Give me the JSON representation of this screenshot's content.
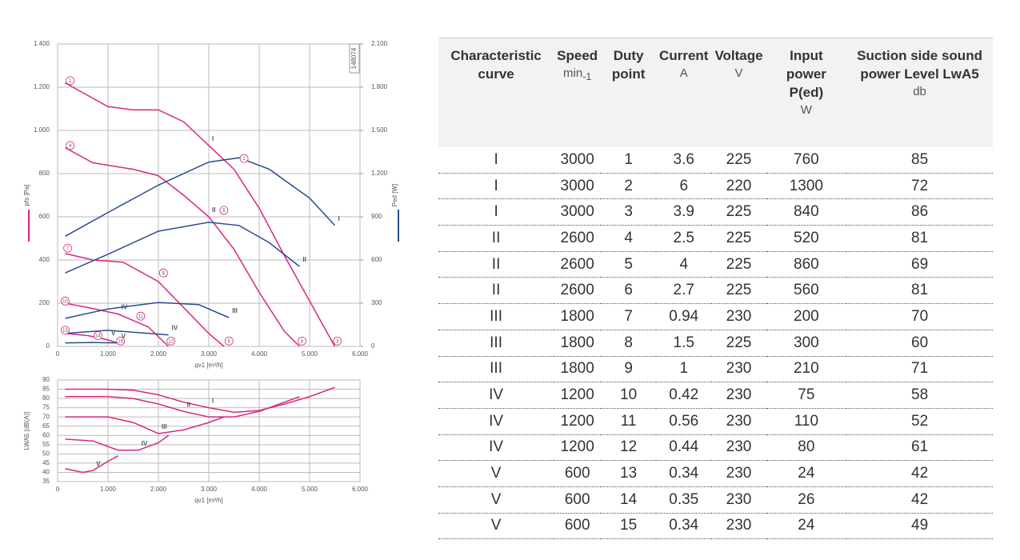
{
  "chart_data": [
    {
      "type": "line",
      "code": "148074",
      "xlabel": "qv1 [m³/h]",
      "ylabel": "pfs [Pa]",
      "y2label": "Ped [W]",
      "xlim": [
        0,
        6000
      ],
      "xticks": [
        0,
        {
          "value": 1000,
          "label": "1.000"
        },
        {
          "value": 2000,
          "label": "2.000"
        },
        {
          "value": 3000,
          "label": "3.000"
        },
        {
          "value": 4000,
          "label": "4.000"
        },
        {
          "value": 5000,
          "label": "5.000"
        },
        {
          "value": 6000,
          "label": "6.000"
        }
      ],
      "ylim": [
        0,
        1400
      ],
      "yticks": [
        0,
        200,
        400,
        600,
        800,
        {
          "value": 1000,
          "label": "1.000"
        },
        {
          "value": 1200,
          "label": "1.200"
        },
        {
          "value": 1400,
          "label": "1.400"
        }
      ],
      "y2lim": [
        0,
        2100
      ],
      "y2ticks": [
        0,
        300,
        600,
        900,
        {
          "value": 1200,
          "label": "1.200"
        },
        {
          "value": 1500,
          "label": "1.500"
        },
        {
          "value": 1800,
          "label": "1.800"
        },
        {
          "value": 2100,
          "label": "2.100"
        }
      ],
      "grid": true,
      "series": [
        {
          "name": "I",
          "color": "#d6287f",
          "x": [
            150,
            1000,
            1500,
            2000,
            2500,
            3000,
            3500,
            4000,
            4500,
            5000,
            5500
          ],
          "values": [
            1220,
            1110,
            1095,
            1095,
            1040,
            930,
            820,
            640,
            420,
            210,
            0
          ]
        },
        {
          "name": "II",
          "color": "#d6287f",
          "x": [
            150,
            700,
            1500,
            2000,
            2500,
            3000,
            3500,
            4000,
            4500,
            4800
          ],
          "values": [
            920,
            850,
            820,
            790,
            700,
            600,
            450,
            250,
            70,
            0
          ]
        },
        {
          "name": "III",
          "color": "#d6287f",
          "x": [
            150,
            700,
            1300,
            2000,
            2500,
            3000,
            3300
          ],
          "values": [
            430,
            400,
            390,
            300,
            180,
            60,
            0
          ]
        },
        {
          "name": "IV",
          "color": "#d6287f",
          "x": [
            150,
            600,
            1200,
            1800,
            2200
          ],
          "values": [
            200,
            180,
            150,
            90,
            0
          ]
        },
        {
          "name": "V",
          "color": "#d6287f",
          "x": [
            150,
            600,
            1000,
            1200
          ],
          "values": [
            60,
            50,
            30,
            15
          ]
        },
        {
          "name": "I",
          "color": "#2a4d8f",
          "axis": "y2",
          "x": [
            150,
            1000,
            2000,
            3000,
            3600,
            4200,
            5000,
            5500
          ],
          "values": [
            765,
            930,
            1120,
            1280,
            1310,
            1230,
            1030,
            840
          ]
        },
        {
          "name": "II",
          "color": "#2a4d8f",
          "axis": "y2",
          "x": [
            150,
            1000,
            2000,
            3000,
            3600,
            4200,
            4800
          ],
          "values": [
            510,
            640,
            800,
            862,
            840,
            720,
            555
          ]
        },
        {
          "name": "III",
          "color": "#2a4d8f",
          "axis": "y2",
          "x": [
            150,
            1000,
            2000,
            2800,
            3400
          ],
          "values": [
            195,
            260,
            305,
            290,
            200
          ]
        },
        {
          "name": "IV",
          "color": "#2a4d8f",
          "axis": "y2",
          "x": [
            150,
            1000,
            2200
          ],
          "values": [
            90,
            112,
            80
          ]
        },
        {
          "name": "V",
          "color": "#2a4d8f",
          "axis": "y2",
          "x": [
            150,
            700,
            1200
          ],
          "values": [
            24,
            27,
            24
          ]
        }
      ],
      "annotations": [
        {
          "label": "1",
          "x": 250,
          "y": 1230
        },
        {
          "label": "2",
          "x": 3700,
          "y": 870
        },
        {
          "label": "3",
          "x": 5550,
          "y": 25
        },
        {
          "label": "4",
          "x": 250,
          "y": 930
        },
        {
          "label": "5",
          "x": 3300,
          "y": 630
        },
        {
          "label": "6",
          "x": 4850,
          "y": 25
        },
        {
          "label": "7",
          "x": 200,
          "y": 455
        },
        {
          "label": "8",
          "x": 2100,
          "y": 340
        },
        {
          "label": "9",
          "x": 3400,
          "y": 25
        },
        {
          "label": "10",
          "x": 150,
          "y": 210
        },
        {
          "label": "11",
          "x": 1650,
          "y": 140
        },
        {
          "label": "12",
          "x": 2250,
          "y": 25
        },
        {
          "label": "13",
          "x": 150,
          "y": 75
        },
        {
          "label": "14",
          "x": 800,
          "y": 50
        },
        {
          "label": "15",
          "x": 1250,
          "y": 25
        }
      ]
    },
    {
      "type": "line",
      "xlabel": "qv1 [m³/h]",
      "ylabel": "LWA5 [dB(A)]",
      "xlim": [
        0,
        6000
      ],
      "xticks": [
        0,
        {
          "value": 1000,
          "label": "1.000"
        },
        {
          "value": 2000,
          "label": "2.000"
        },
        {
          "value": 3000,
          "label": "3.000"
        },
        {
          "value": 4000,
          "label": "4.000"
        },
        {
          "value": 5000,
          "label": "5.000"
        },
        {
          "value": 6000,
          "label": "6.000"
        }
      ],
      "ylim": [
        35,
        90
      ],
      "yticks": [
        35,
        40,
        45,
        50,
        55,
        60,
        65,
        70,
        75,
        80,
        85,
        90
      ],
      "grid": true,
      "series": [
        {
          "name": "I",
          "color": "#d6287f",
          "x": [
            150,
            1000,
            1500,
            2000,
            2500,
            3000,
            3500,
            4000,
            4500,
            5000,
            5500
          ],
          "values": [
            85,
            85,
            84.5,
            82,
            78,
            75,
            72.5,
            73.5,
            77,
            81,
            86
          ]
        },
        {
          "name": "II",
          "color": "#d6287f",
          "x": [
            150,
            1000,
            1500,
            2000,
            2500,
            3000,
            3500,
            4000,
            4800
          ],
          "values": [
            81,
            81,
            80,
            77,
            73,
            70,
            70,
            73,
            81
          ]
        },
        {
          "name": "III",
          "color": "#d6287f",
          "x": [
            150,
            1000,
            1500,
            2000,
            2500,
            3000,
            3300
          ],
          "values": [
            70,
            70,
            67,
            61,
            63,
            67,
            70
          ]
        },
        {
          "name": "IV",
          "color": "#d6287f",
          "x": [
            150,
            700,
            1200,
            1600,
            2000,
            2200
          ],
          "values": [
            58,
            57,
            52,
            52,
            56,
            60
          ]
        },
        {
          "name": "V",
          "color": "#d6287f",
          "x": [
            150,
            500,
            700,
            1000,
            1200
          ],
          "values": [
            42,
            40,
            41,
            46,
            49
          ]
        }
      ]
    }
  ],
  "table": {
    "header": [
      {
        "title": "Characteristic curve"
      },
      {
        "title": "Speed",
        "unit": "min",
        "unit_sub": "-1"
      },
      {
        "title": "Duty point"
      },
      {
        "title": "Current",
        "unit": "A"
      },
      {
        "title": "Voltage",
        "unit": "V"
      },
      {
        "title": "Input power P(ed)",
        "unit": "W"
      },
      {
        "title": "Suction side sound power Level LwA5",
        "unit": "db"
      }
    ],
    "rows": [
      [
        "I",
        "3000",
        "1",
        "3.6",
        "225",
        "760",
        "85"
      ],
      [
        "I",
        "3000",
        "2",
        "6",
        "220",
        "1300",
        "72"
      ],
      [
        "I",
        "3000",
        "3",
        "3.9",
        "225",
        "840",
        "86"
      ],
      [
        "II",
        "2600",
        "4",
        "2.5",
        "225",
        "520",
        "81"
      ],
      [
        "II",
        "2600",
        "5",
        "4",
        "225",
        "860",
        "69"
      ],
      [
        "II",
        "2600",
        "6",
        "2.7",
        "225",
        "560",
        "81"
      ],
      [
        "III",
        "1800",
        "7",
        "0.94",
        "230",
        "200",
        "70"
      ],
      [
        "III",
        "1800",
        "8",
        "1.5",
        "225",
        "300",
        "60"
      ],
      [
        "III",
        "1800",
        "9",
        "1",
        "230",
        "210",
        "71"
      ],
      [
        "IV",
        "1200",
        "10",
        "0.42",
        "230",
        "75",
        "58"
      ],
      [
        "IV",
        "1200",
        "11",
        "0.56",
        "230",
        "110",
        "52"
      ],
      [
        "IV",
        "1200",
        "12",
        "0.44",
        "230",
        "80",
        "61"
      ],
      [
        "V",
        "600",
        "13",
        "0.34",
        "230",
        "24",
        "42"
      ],
      [
        "V",
        "600",
        "14",
        "0.35",
        "230",
        "26",
        "42"
      ],
      [
        "V",
        "600",
        "15",
        "0.34",
        "230",
        "24",
        "49"
      ]
    ]
  }
}
